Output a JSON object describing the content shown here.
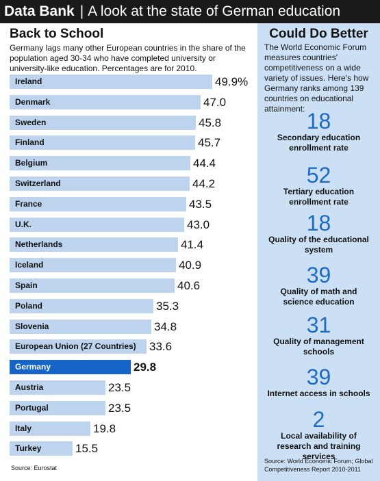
{
  "header": {
    "brand": "Data Bank",
    "separator": "|",
    "subtitle": "A look at the state of German education"
  },
  "left_panel": {
    "title": "Back to School",
    "description": "Germany lags many other European countries in the share of the population aged 30-34 who have completed university or university-like education. Percentages are for 2010.",
    "source": "Source: Eurostat"
  },
  "right_panel": {
    "title": "Could Do Better",
    "description": "The World Economic Forum measures countries' competitiveness on a wide variety of issues. Here's how Germany ranks among 139 countries on educational attainment:",
    "ranks": [
      {
        "rank": "18",
        "label": "Secondary education enrollment rate"
      },
      {
        "rank": "52",
        "label": "Tertiary education enrollment rate"
      },
      {
        "rank": "18",
        "label": "Quality of the educational system"
      },
      {
        "rank": "39",
        "label": "Quality of math and science education"
      },
      {
        "rank": "31",
        "label": "Quality of management schools"
      },
      {
        "rank": "39",
        "label": "Internet access in schools"
      },
      {
        "rank": "2",
        "label": "Local availability of research and training services"
      }
    ],
    "source": "Source: World Economic Forum; Global Competitiveness Report 2010-2011"
  },
  "colors": {
    "bar": "#bdd3ee",
    "highlight_bar": "#1565c7",
    "right_panel_bg": "#cce0f5",
    "rank_number": "#1e6bc0",
    "header_bg": "#1a1a1a"
  },
  "chart_data": {
    "type": "bar",
    "orientation": "horizontal",
    "categories": [
      "Ireland",
      "Denmark",
      "Sweden",
      "Finland",
      "Belgium",
      "Switzerland",
      "France",
      "U.K.",
      "Netherlands",
      "Iceland",
      "Spain",
      "Poland",
      "Slovenia",
      "European Union (27 Countries)",
      "Germany",
      "Austria",
      "Portugal",
      "Italy",
      "Turkey"
    ],
    "values": [
      49.9,
      47.0,
      45.8,
      45.7,
      44.4,
      44.2,
      43.5,
      43.0,
      41.4,
      40.9,
      40.6,
      35.3,
      34.8,
      33.6,
      29.8,
      23.5,
      23.5,
      19.8,
      15.5
    ],
    "value_labels": [
      "49.9%",
      "47.0",
      "45.8",
      "45.7",
      "44.4",
      "44.2",
      "43.5",
      "43.0",
      "41.4",
      "40.9",
      "40.6",
      "35.3",
      "34.8",
      "33.6",
      "29.8",
      "23.5",
      "23.5",
      "19.8",
      "15.5"
    ],
    "highlight": "Germany",
    "xlim": [
      0,
      50
    ],
    "grid": false
  }
}
